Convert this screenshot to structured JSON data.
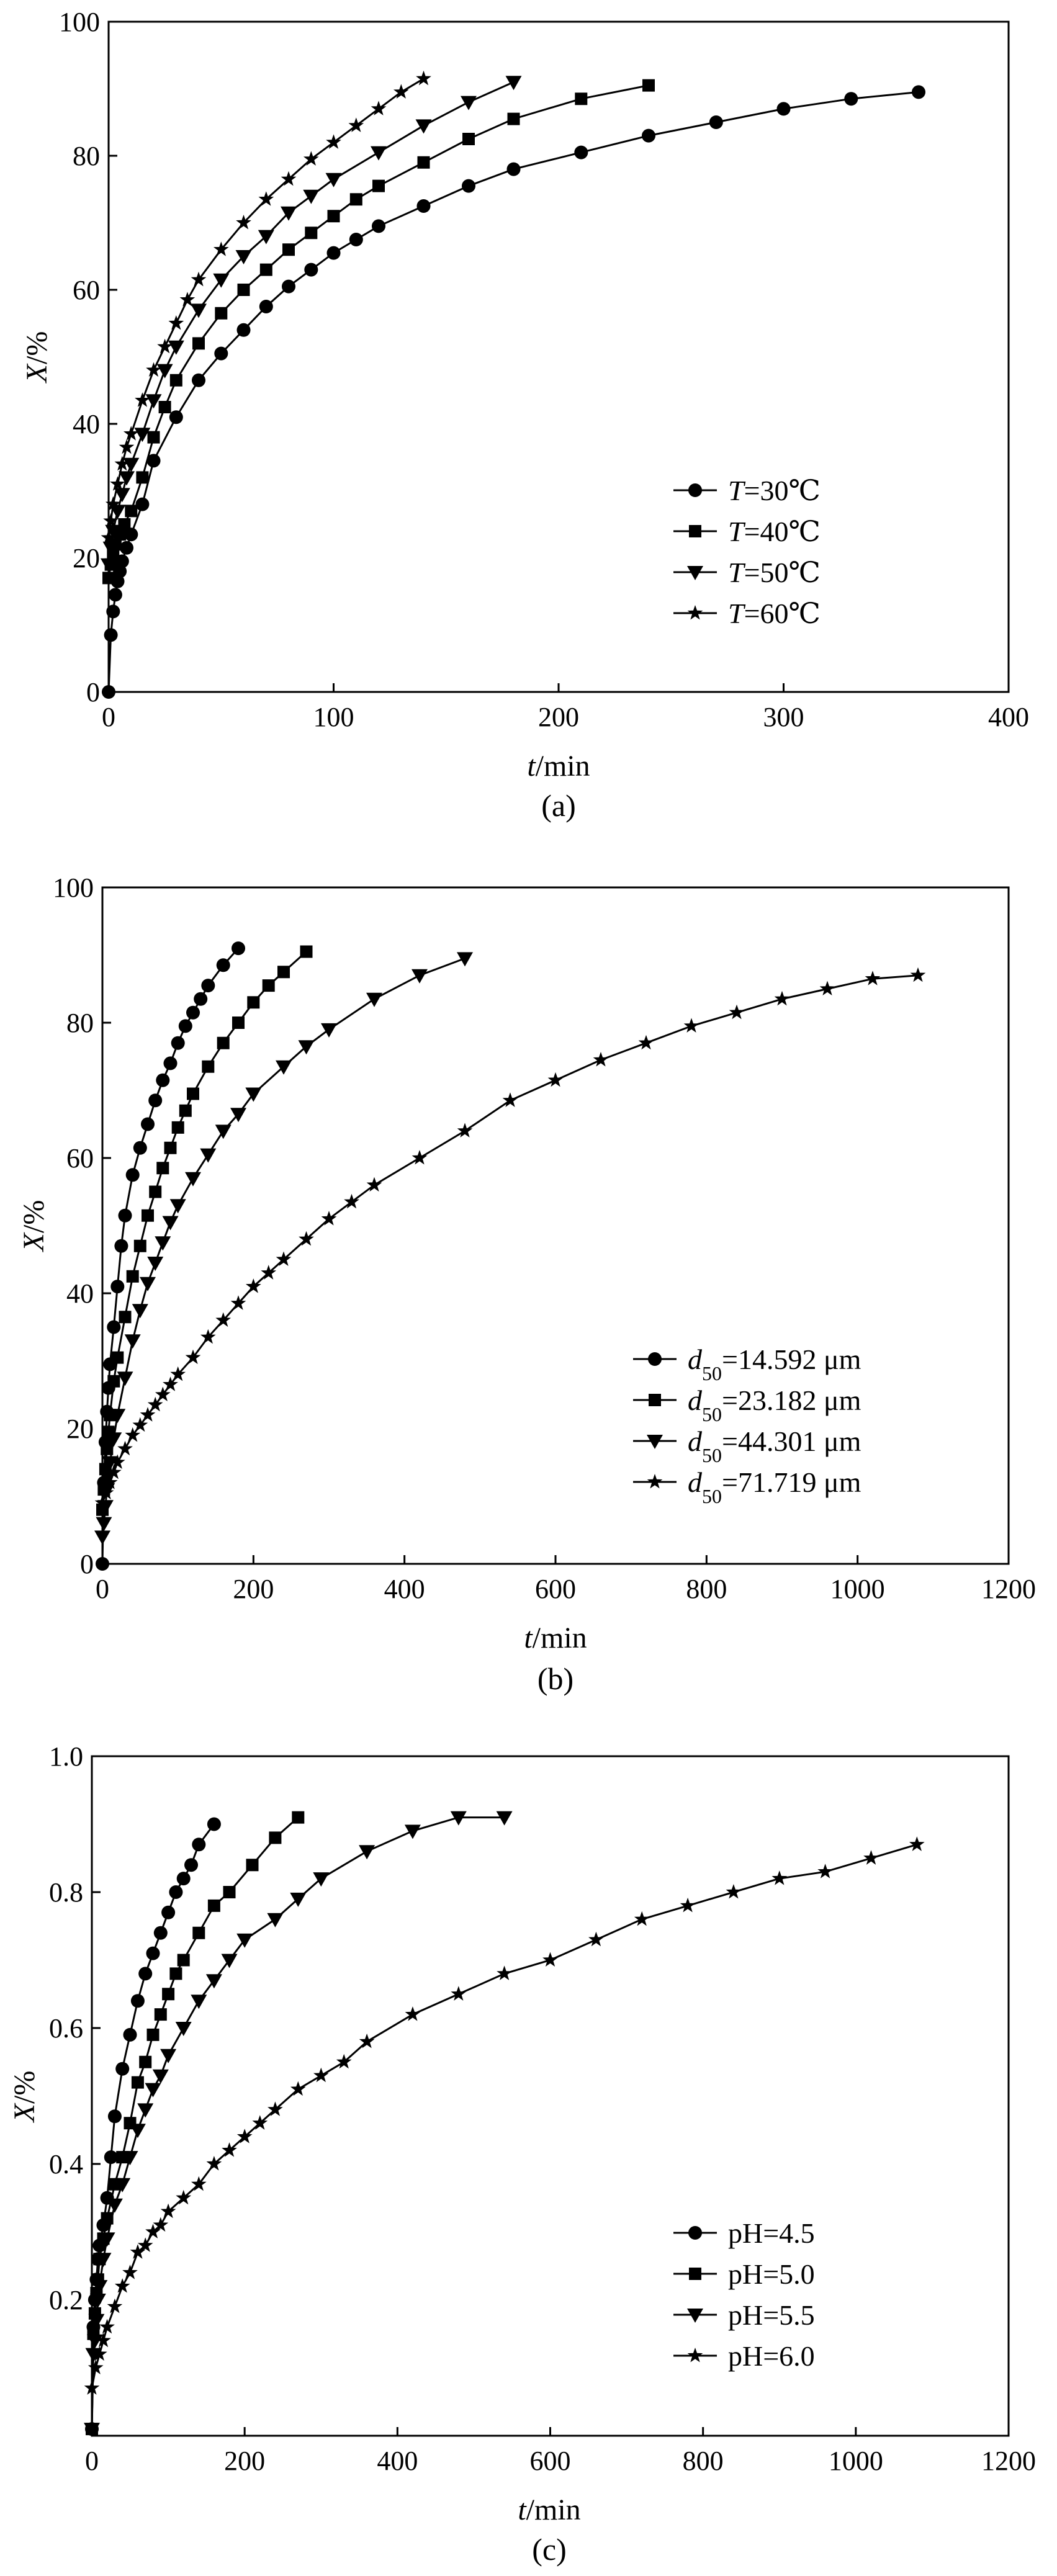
{
  "figure": {
    "panels": [
      "a",
      "b",
      "c"
    ]
  },
  "chart_data": [
    {
      "type": "line",
      "panel_caption": "(a)",
      "xlabel_italic": "t",
      "xlabel_rest": "/min",
      "ylabel_italic": "X",
      "ylabel_rest": "/%",
      "xlim": [
        0,
        400
      ],
      "ylim": [
        0,
        100
      ],
      "xticks": [
        0,
        100,
        200,
        300,
        400
      ],
      "yticks": [
        0,
        20,
        40,
        60,
        80,
        100
      ],
      "ytick_labels": [
        "0",
        "20",
        "40",
        "60",
        "80",
        "100"
      ],
      "legend_position": "bottom-right",
      "series": [
        {
          "name": "T=30℃",
          "label_italic": "T",
          "label_rest": "=30℃",
          "marker": "circle",
          "x": [
            0,
            1,
            2,
            3,
            4,
            5,
            6,
            8,
            10,
            15,
            20,
            30,
            40,
            50,
            60,
            70,
            80,
            90,
            100,
            110,
            120,
            140,
            160,
            180,
            210,
            240,
            270,
            300,
            330,
            360
          ],
          "y": [
            0,
            8.5,
            12,
            14.5,
            16.5,
            18,
            19.5,
            21.5,
            23.5,
            28,
            34.5,
            41,
            46.5,
            50.5,
            54,
            57.5,
            60.5,
            63,
            65.5,
            67.5,
            69.5,
            72.5,
            75.5,
            78,
            80.5,
            83,
            85,
            87,
            88.5,
            89.5
          ]
        },
        {
          "name": "T=40℃",
          "label_italic": "T",
          "label_rest": "=40℃",
          "marker": "square",
          "x": [
            0,
            1,
            2,
            3,
            5,
            7,
            10,
            15,
            20,
            25,
            30,
            40,
            50,
            60,
            70,
            80,
            90,
            100,
            110,
            120,
            140,
            160,
            180,
            210,
            240
          ],
          "y": [
            17,
            19,
            20.5,
            22,
            23.5,
            25,
            27,
            32,
            38,
            42.5,
            46.5,
            52,
            56.5,
            60,
            63,
            66,
            68.5,
            71,
            73.5,
            75.5,
            79,
            82.5,
            85.5,
            88.5,
            90.5
          ]
        },
        {
          "name": "T=50℃",
          "label_italic": "T",
          "label_rest": "=50℃",
          "marker": "triangle-down",
          "x": [
            0,
            1,
            2,
            4,
            6,
            8,
            10,
            15,
            20,
            25,
            30,
            40,
            50,
            60,
            70,
            80,
            90,
            100,
            120,
            140,
            160,
            180
          ],
          "y": [
            19,
            21.5,
            24,
            27,
            29.5,
            32,
            34,
            38.5,
            43.5,
            48,
            51.5,
            57,
            61.5,
            65,
            68,
            71.5,
            74,
            76.5,
            80.5,
            84.5,
            88,
            91
          ]
        },
        {
          "name": "T=60℃",
          "label_italic": "T",
          "label_rest": "=60℃",
          "marker": "star",
          "x": [
            0,
            1,
            2,
            4,
            6,
            8,
            10,
            15,
            20,
            25,
            30,
            35,
            40,
            50,
            60,
            70,
            80,
            90,
            100,
            110,
            120,
            130,
            140
          ],
          "y": [
            23,
            25.5,
            28,
            31,
            34,
            36.5,
            38.5,
            43.5,
            48,
            51.5,
            55,
            58.5,
            61.5,
            66,
            70,
            73.5,
            76.5,
            79.5,
            82,
            84.5,
            87,
            89.5,
            91.5
          ]
        }
      ]
    },
    {
      "type": "line",
      "panel_caption": "(b)",
      "xlabel_italic": "t",
      "xlabel_rest": "/min",
      "ylabel_italic": "X",
      "ylabel_rest": "/%",
      "xlim": [
        0,
        1200
      ],
      "ylim": [
        0,
        100
      ],
      "xticks": [
        0,
        200,
        400,
        600,
        800,
        1000,
        1200
      ],
      "yticks": [
        0,
        20,
        40,
        60,
        80,
        100
      ],
      "ytick_labels": [
        "0",
        "20",
        "40",
        "60",
        "80",
        "100"
      ],
      "legend_position": "bottom-right",
      "series": [
        {
          "name": "d50=14.592 μm",
          "label_main": "d",
          "label_sub": "50",
          "label_rest": "=14.592 μm",
          "marker": "circle",
          "x": [
            0,
            2,
            4,
            6,
            8,
            10,
            15,
            20,
            25,
            30,
            40,
            50,
            60,
            70,
            80,
            90,
            100,
            110,
            120,
            130,
            140,
            160,
            180
          ],
          "y": [
            0,
            12,
            18,
            22.5,
            26,
            29.5,
            35,
            41,
            47,
            51.5,
            57.5,
            61.5,
            65,
            68.5,
            71.5,
            74,
            77,
            79.5,
            81.5,
            83.5,
            85.5,
            88.5,
            91
          ]
        },
        {
          "name": "d50=23.182 μm",
          "label_main": "d",
          "label_sub": "50",
          "label_rest": "=23.182 μm",
          "marker": "square",
          "x": [
            0,
            2,
            4,
            6,
            8,
            10,
            15,
            20,
            30,
            40,
            50,
            60,
            70,
            80,
            90,
            100,
            110,
            120,
            140,
            160,
            180,
            200,
            220,
            240,
            270
          ],
          "y": [
            8,
            11,
            14,
            17,
            19.5,
            22,
            27,
            30.5,
            36.5,
            42.5,
            47,
            51.5,
            55,
            58.5,
            61.5,
            64.5,
            67,
            69.5,
            73.5,
            77,
            80,
            83,
            85.5,
            87.5,
            90.5
          ]
        },
        {
          "name": "d50=44.301 μm",
          "label_main": "d",
          "label_sub": "50",
          "label_rest": "=44.301 μm",
          "marker": "triangle-down",
          "x": [
            0,
            2,
            4,
            6,
            8,
            10,
            15,
            20,
            30,
            40,
            50,
            60,
            70,
            80,
            90,
            100,
            120,
            140,
            160,
            180,
            200,
            240,
            270,
            300,
            360,
            420,
            480
          ],
          "y": [
            4,
            6,
            8.5,
            11,
            13,
            15,
            18.5,
            22,
            27.5,
            33,
            37.5,
            41.5,
            44.5,
            47.5,
            50.5,
            53,
            57,
            60.5,
            64,
            66.5,
            69.5,
            73.5,
            76.5,
            79,
            83.5,
            87,
            89.5
          ]
        },
        {
          "name": "d50=71.719 μm",
          "label_main": "d",
          "label_sub": "50",
          "label_rest": "=71.719 μm",
          "marker": "star",
          "x": [
            0,
            5,
            10,
            15,
            20,
            30,
            40,
            50,
            60,
            70,
            80,
            90,
            100,
            120,
            140,
            160,
            180,
            200,
            220,
            240,
            270,
            300,
            330,
            360,
            420,
            480,
            540,
            600,
            660,
            720,
            780,
            840,
            900,
            960,
            1020,
            1080
          ],
          "y": [
            9,
            10.5,
            12,
            13.5,
            15,
            17,
            19,
            20.5,
            22,
            23.5,
            25,
            26.5,
            28,
            30.5,
            33.5,
            36,
            38.5,
            41,
            43,
            45,
            48,
            51,
            53.5,
            56,
            60,
            64,
            68.5,
            71.5,
            74.5,
            77,
            79.5,
            81.5,
            83.5,
            85,
            86.5,
            87
          ]
        }
      ]
    },
    {
      "type": "line",
      "panel_caption": "(c)",
      "xlabel_italic": "t",
      "xlabel_rest": "/min",
      "ylabel_italic": "X",
      "ylabel_rest": "/%",
      "xlim": [
        0,
        1200
      ],
      "ylim": [
        0,
        1.0
      ],
      "xticks": [
        0,
        200,
        400,
        600,
        800,
        1000,
        1200
      ],
      "yticks": [
        0.2,
        0.4,
        0.6,
        0.8,
        1.0
      ],
      "ytick_labels": [
        "0.2",
        "0.4",
        "0.6",
        "0.8",
        "1.0"
      ],
      "x_origin_label": "0",
      "legend_position": "bottom-right",
      "series": [
        {
          "name": "pH=4.5",
          "label_rest": "pH=4.5",
          "marker": "circle",
          "x": [
            0,
            2,
            4,
            6,
            8,
            10,
            15,
            20,
            25,
            30,
            40,
            50,
            60,
            70,
            80,
            90,
            100,
            110,
            120,
            130,
            140,
            160
          ],
          "y": [
            0.01,
            0.16,
            0.2,
            0.23,
            0.26,
            0.28,
            0.31,
            0.35,
            0.41,
            0.47,
            0.54,
            0.59,
            0.64,
            0.68,
            0.71,
            0.74,
            0.77,
            0.8,
            0.82,
            0.84,
            0.87,
            0.9
          ]
        },
        {
          "name": "pH=5.0",
          "label_rest": "pH=5.0",
          "marker": "square",
          "x": [
            0,
            2,
            4,
            6,
            8,
            10,
            15,
            20,
            30,
            40,
            50,
            60,
            70,
            80,
            90,
            100,
            110,
            120,
            140,
            160,
            180,
            210,
            240,
            270
          ],
          "y": [
            0.01,
            0.15,
            0.18,
            0.21,
            0.23,
            0.26,
            0.29,
            0.32,
            0.37,
            0.41,
            0.46,
            0.52,
            0.55,
            0.59,
            0.62,
            0.65,
            0.68,
            0.7,
            0.74,
            0.78,
            0.8,
            0.84,
            0.88,
            0.91
          ]
        },
        {
          "name": "pH=5.5",
          "label_rest": "pH=5.5",
          "marker": "triangle-down",
          "x": [
            0,
            2,
            4,
            6,
            8,
            10,
            15,
            20,
            30,
            40,
            50,
            60,
            70,
            80,
            90,
            100,
            120,
            140,
            160,
            180,
            200,
            240,
            270,
            300,
            360,
            420,
            480,
            540
          ],
          "y": [
            0.01,
            0.12,
            0.14,
            0.17,
            0.2,
            0.22,
            0.26,
            0.29,
            0.34,
            0.37,
            0.41,
            0.45,
            0.48,
            0.51,
            0.53,
            0.56,
            0.6,
            0.64,
            0.67,
            0.7,
            0.73,
            0.76,
            0.79,
            0.82,
            0.86,
            0.89,
            0.91,
            0.91
          ]
        },
        {
          "name": "pH=6.0",
          "label_rest": "pH=6.0",
          "marker": "star",
          "x": [
            0,
            5,
            10,
            15,
            20,
            30,
            40,
            50,
            60,
            70,
            80,
            90,
            100,
            120,
            140,
            160,
            180,
            200,
            220,
            240,
            270,
            300,
            330,
            360,
            420,
            480,
            540,
            600,
            660,
            720,
            780,
            840,
            900,
            960,
            1020,
            1080
          ],
          "y": [
            0.07,
            0.1,
            0.12,
            0.14,
            0.16,
            0.19,
            0.22,
            0.24,
            0.27,
            0.28,
            0.3,
            0.31,
            0.33,
            0.35,
            0.37,
            0.4,
            0.42,
            0.44,
            0.46,
            0.48,
            0.51,
            0.53,
            0.55,
            0.58,
            0.62,
            0.65,
            0.68,
            0.7,
            0.73,
            0.76,
            0.78,
            0.8,
            0.82,
            0.83,
            0.85,
            0.87
          ]
        }
      ]
    }
  ]
}
